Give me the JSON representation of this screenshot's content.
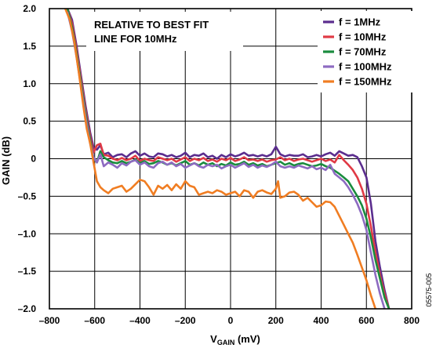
{
  "chart_data": {
    "type": "line",
    "xlabel_main": "V",
    "xlabel_sub": "GAIN",
    "xlabel_unit": " (mV)",
    "ylabel": "GAIN (dB)",
    "xlim": [
      -800,
      800
    ],
    "ylim": [
      -2.0,
      2.0
    ],
    "xticks": [
      -800,
      -600,
      -400,
      -200,
      0,
      200,
      400,
      600,
      800
    ],
    "xtick_labels": [
      "–800",
      "–600",
      "–400",
      "–200",
      "0",
      "200",
      "400",
      "600",
      "800"
    ],
    "yticks": [
      2.0,
      1.5,
      1.0,
      0.5,
      0,
      -0.5,
      -1.0,
      -1.5,
      -2.0
    ],
    "ytick_labels": [
      "2.0",
      "1.5",
      "1.0",
      "0.5",
      "0",
      "–0.5",
      "–1.0",
      "–1.5",
      "–2.0"
    ],
    "grid": true,
    "legend_position": "top-right",
    "annotation": [
      "RELATIVE TO BEST FIT",
      "LINE FOR 10MHz"
    ],
    "figure_id": "05575-005",
    "series": [
      {
        "name": "f = 1MHz",
        "color": "#5b2d8e",
        "x": [
          -720,
          -700,
          -680,
          -660,
          -640,
          -620,
          -605,
          -590,
          -575,
          -560,
          -540,
          -520,
          -500,
          -480,
          -460,
          -440,
          -420,
          -400,
          -380,
          -360,
          -340,
          -320,
          -300,
          -280,
          -260,
          -240,
          -220,
          -200,
          -180,
          -160,
          -140,
          -120,
          -100,
          -80,
          -60,
          -40,
          -20,
          0,
          20,
          40,
          60,
          80,
          100,
          120,
          140,
          160,
          180,
          200,
          220,
          240,
          260,
          280,
          300,
          320,
          340,
          360,
          380,
          400,
          420,
          440,
          460,
          480,
          500,
          520,
          540,
          560,
          580,
          600,
          620,
          640,
          660,
          680,
          700
        ],
        "y": [
          2.0,
          1.85,
          1.5,
          1.1,
          0.7,
          0.35,
          0.15,
          0.12,
          0.18,
          0.06,
          0.08,
          0.02,
          0.05,
          0.06,
          0.02,
          0.07,
          0.1,
          0.04,
          0.07,
          0.03,
          0.02,
          0.07,
          0.06,
          0.03,
          0.05,
          0.02,
          0.04,
          0.08,
          0.02,
          0.05,
          0.04,
          0.07,
          0.02,
          0.04,
          0.0,
          0.05,
          0.02,
          0.06,
          0.03,
          0.05,
          0.08,
          0.04,
          0.05,
          0.03,
          0.05,
          0.03,
          0.06,
          0.16,
          0.06,
          0.03,
          0.05,
          0.04,
          0.04,
          0.06,
          0.02,
          0.03,
          0.05,
          0.03,
          0.06,
          0.08,
          0.04,
          0.1,
          0.07,
          0.04,
          0.05,
          0.02,
          -0.1,
          -0.25,
          -0.6,
          -1.1,
          -1.45,
          -1.75,
          -2.0
        ]
      },
      {
        "name": "f = 10MHz",
        "color": "#e03a45",
        "x": [
          -720,
          -700,
          -680,
          -660,
          -640,
          -620,
          -605,
          -590,
          -575,
          -560,
          -540,
          -520,
          -500,
          -480,
          -460,
          -440,
          -420,
          -400,
          -380,
          -360,
          -340,
          -320,
          -300,
          -280,
          -260,
          -240,
          -220,
          -200,
          -180,
          -160,
          -140,
          -120,
          -100,
          -80,
          -60,
          -40,
          -20,
          0,
          20,
          40,
          60,
          80,
          100,
          120,
          140,
          160,
          180,
          200,
          220,
          240,
          260,
          280,
          300,
          320,
          340,
          360,
          380,
          400,
          420,
          440,
          460,
          480,
          500,
          520,
          540,
          560,
          580,
          600,
          620,
          640,
          660,
          680,
          700
        ],
        "y": [
          2.0,
          1.8,
          1.45,
          1.05,
          0.65,
          0.3,
          0.08,
          0.18,
          0.2,
          0.05,
          0.04,
          0.0,
          -0.02,
          0.01,
          -0.02,
          0.0,
          0.04,
          -0.03,
          0.0,
          -0.02,
          -0.03,
          0.02,
          0.0,
          -0.02,
          0.0,
          -0.04,
          -0.01,
          0.02,
          -0.03,
          0.0,
          -0.02,
          0.01,
          -0.03,
          -0.01,
          -0.04,
          0.0,
          -0.02,
          0.01,
          -0.03,
          -0.01,
          0.02,
          -0.02,
          -0.01,
          -0.03,
          -0.01,
          -0.04,
          -0.02,
          -0.01,
          0.02,
          -0.02,
          0.0,
          -0.03,
          -0.01,
          0.0,
          -0.02,
          -0.04,
          -0.02,
          0.0,
          -0.03,
          -0.01,
          -0.05,
          0.05,
          -0.02,
          -0.08,
          -0.15,
          -0.25,
          -0.4,
          -0.6,
          -0.9,
          -1.25,
          -1.55,
          -1.8,
          -2.0
        ]
      },
      {
        "name": "f = 70MHz",
        "color": "#1a8c3e",
        "x": [
          -720,
          -700,
          -680,
          -660,
          -640,
          -620,
          -605,
          -590,
          -575,
          -560,
          -540,
          -520,
          -500,
          -480,
          -460,
          -440,
          -420,
          -400,
          -380,
          -360,
          -340,
          -320,
          -300,
          -280,
          -260,
          -240,
          -220,
          -200,
          -180,
          -160,
          -140,
          -120,
          -100,
          -80,
          -60,
          -40,
          -20,
          0,
          20,
          40,
          60,
          80,
          100,
          120,
          140,
          160,
          180,
          200,
          220,
          240,
          260,
          280,
          300,
          320,
          340,
          360,
          380,
          400,
          420,
          440,
          460,
          480,
          500,
          520,
          540,
          560,
          580,
          600,
          620,
          640,
          660,
          680,
          700
        ],
        "y": [
          2.0,
          1.75,
          1.4,
          1.0,
          0.6,
          0.25,
          0.0,
          -0.05,
          0.1,
          0.02,
          -0.02,
          -0.05,
          -0.06,
          -0.03,
          -0.06,
          -0.04,
          -0.01,
          -0.06,
          -0.03,
          -0.07,
          -0.06,
          -0.03,
          -0.05,
          -0.08,
          -0.06,
          -0.09,
          -0.06,
          -0.03,
          -0.08,
          -0.06,
          -0.09,
          -0.05,
          -0.08,
          -0.06,
          -0.1,
          -0.07,
          -0.09,
          -0.05,
          -0.08,
          -0.07,
          -0.04,
          -0.08,
          -0.06,
          -0.09,
          -0.07,
          -0.1,
          -0.08,
          -0.06,
          -0.04,
          -0.08,
          -0.06,
          -0.09,
          -0.07,
          -0.06,
          -0.08,
          -0.1,
          -0.09,
          -0.07,
          -0.1,
          -0.12,
          -0.16,
          -0.2,
          -0.25,
          -0.3,
          -0.4,
          -0.5,
          -0.62,
          -0.8,
          -1.05,
          -1.35,
          -1.6,
          -1.85,
          -2.0
        ]
      },
      {
        "name": "f = 100MHz",
        "color": "#8d6bc1",
        "x": [
          -720,
          -700,
          -680,
          -660,
          -640,
          -620,
          -605,
          -590,
          -575,
          -560,
          -540,
          -520,
          -500,
          -480,
          -460,
          -440,
          -420,
          -400,
          -380,
          -360,
          -340,
          -320,
          -300,
          -280,
          -260,
          -240,
          -220,
          -200,
          -180,
          -160,
          -140,
          -120,
          -100,
          -80,
          -60,
          -40,
          -20,
          0,
          20,
          40,
          60,
          80,
          100,
          120,
          140,
          160,
          180,
          200,
          220,
          240,
          260,
          280,
          300,
          320,
          340,
          360,
          380,
          400,
          420,
          440,
          460,
          480,
          500,
          520,
          540,
          560,
          580,
          600,
          620,
          640,
          660,
          680
        ],
        "y": [
          1.95,
          1.7,
          1.35,
          0.95,
          0.55,
          0.2,
          0.02,
          -0.05,
          0.06,
          -0.1,
          -0.05,
          -0.08,
          -0.12,
          -0.06,
          -0.09,
          -0.04,
          -0.02,
          -0.08,
          -0.05,
          -0.1,
          -0.12,
          -0.06,
          -0.04,
          -0.08,
          -0.05,
          -0.1,
          -0.07,
          -0.12,
          -0.09,
          -0.06,
          -0.1,
          -0.12,
          -0.08,
          -0.1,
          -0.08,
          -0.13,
          -0.1,
          -0.08,
          -0.12,
          -0.09,
          -0.06,
          -0.11,
          -0.08,
          -0.12,
          -0.09,
          -0.11,
          -0.08,
          -0.04,
          -0.1,
          -0.12,
          -0.1,
          -0.12,
          -0.09,
          -0.11,
          -0.13,
          -0.1,
          -0.14,
          -0.12,
          -0.15,
          -0.08,
          -0.2,
          -0.25,
          -0.3,
          -0.38,
          -0.48,
          -0.6,
          -0.75,
          -0.95,
          -1.25,
          -1.55,
          -1.8,
          -2.0
        ]
      },
      {
        "name": "f = 150MHz",
        "color": "#f07d22",
        "x": [
          -730,
          -710,
          -690,
          -670,
          -650,
          -635,
          -620,
          -605,
          -590,
          -575,
          -560,
          -540,
          -520,
          -500,
          -480,
          -460,
          -440,
          -420,
          -400,
          -380,
          -360,
          -340,
          -320,
          -300,
          -280,
          -260,
          -240,
          -220,
          -200,
          -180,
          -160,
          -140,
          -120,
          -100,
          -80,
          -60,
          -40,
          -20,
          0,
          20,
          40,
          60,
          80,
          100,
          120,
          140,
          160,
          180,
          200,
          210,
          220,
          240,
          260,
          280,
          300,
          320,
          340,
          360,
          380,
          400,
          420,
          440,
          460,
          480,
          500,
          520,
          540,
          560,
          580,
          600,
          620,
          640
        ],
        "y": [
          2.0,
          1.85,
          1.55,
          1.15,
          0.7,
          0.4,
          0.2,
          -0.05,
          -0.3,
          -0.38,
          -0.42,
          -0.46,
          -0.4,
          -0.38,
          -0.36,
          -0.44,
          -0.4,
          -0.34,
          -0.28,
          -0.3,
          -0.38,
          -0.48,
          -0.36,
          -0.4,
          -0.35,
          -0.42,
          -0.34,
          -0.4,
          -0.3,
          -0.36,
          -0.38,
          -0.48,
          -0.46,
          -0.44,
          -0.46,
          -0.42,
          -0.44,
          -0.48,
          -0.46,
          -0.44,
          -0.5,
          -0.42,
          -0.44,
          -0.52,
          -0.44,
          -0.42,
          -0.45,
          -0.47,
          -0.4,
          -0.3,
          -0.52,
          -0.5,
          -0.45,
          -0.44,
          -0.48,
          -0.56,
          -0.52,
          -0.58,
          -0.64,
          -0.62,
          -0.57,
          -0.58,
          -0.64,
          -0.76,
          -0.88,
          -1.0,
          -1.12,
          -1.28,
          -1.45,
          -1.62,
          -1.82,
          -2.0
        ]
      }
    ]
  }
}
